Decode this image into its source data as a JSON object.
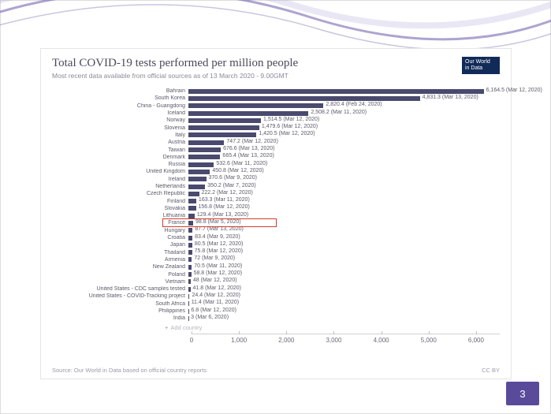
{
  "page_number": "3",
  "decorative_swoosh_color": "#6a5aaa",
  "chart": {
    "type": "bar",
    "title": "Total COVID-19 tests performed per million people",
    "subtitle": "Most recent data available from official sources as of 13 March 2020 - 9.00GMT",
    "badge_line1": "Our World",
    "badge_line2": "in Data",
    "badge_bg": "#112a58",
    "bar_color": "#4a4a6e",
    "highlight_color": "#d43b2a",
    "text_color": "#5a5a6a",
    "background_color": "#ffffff",
    "xlim": [
      0,
      6500
    ],
    "xticks": [
      0,
      1000,
      2000,
      3000,
      4000,
      5000,
      6000
    ],
    "xtick_labels": [
      "0",
      "1,000",
      "2,000",
      "3,000",
      "4,000",
      "5,000",
      "6,000"
    ],
    "add_country_label": "Add country",
    "source_text": "Source: Our World in Data based on official country reports",
    "license_text": "CC BY",
    "highlighted_row_index": 18,
    "rows": [
      {
        "label": "Bahrain",
        "value": 6164.5,
        "value_label": "6,164.5 (Mar 12, 2020)"
      },
      {
        "label": "South Korea",
        "value": 4831.3,
        "value_label": "4,831.3 (Mar 13, 2020)"
      },
      {
        "label": "China - Guangdong",
        "value": 2820.4,
        "value_label": "2,820.4 (Feb 24, 2020)"
      },
      {
        "label": "Iceland",
        "value": 2508.2,
        "value_label": "2,508.2 (Mar 11, 2020)"
      },
      {
        "label": "Norway",
        "value": 1514.5,
        "value_label": "1,514.5 (Mar 12, 2020)"
      },
      {
        "label": "Slovenia",
        "value": 1479.6,
        "value_label": "1,479.6 (Mar 12, 2020)"
      },
      {
        "label": "Italy",
        "value": 1420.5,
        "value_label": "1,420.5 (Mar 12, 2020)"
      },
      {
        "label": "Austria",
        "value": 747.2,
        "value_label": "747.2 (Mar 12, 2020)"
      },
      {
        "label": "Taiwan",
        "value": 676.6,
        "value_label": "676.6 (Mar 13, 2020)"
      },
      {
        "label": "Denmark",
        "value": 665.4,
        "value_label": "665.4 (Mar 13, 2020)"
      },
      {
        "label": "Russia",
        "value": 532.6,
        "value_label": "532.6 (Mar 11, 2020)"
      },
      {
        "label": "United Kingdom",
        "value": 450.8,
        "value_label": "450.8 (Mar 12, 2020)"
      },
      {
        "label": "Ireland",
        "value": 370.6,
        "value_label": "370.6 (Mar 9, 2020)"
      },
      {
        "label": "Netherlands",
        "value": 350.2,
        "value_label": "350.2 (Mar 7, 2020)"
      },
      {
        "label": "Czech Republic",
        "value": 222.2,
        "value_label": "222.2 (Mar 12, 2020)"
      },
      {
        "label": "Finland",
        "value": 163.3,
        "value_label": "163.3 (Mar 11, 2020)"
      },
      {
        "label": "Slovakia",
        "value": 156.8,
        "value_label": "156.8 (Mar 12, 2020)"
      },
      {
        "label": "Lithuania",
        "value": 129.4,
        "value_label": "129.4 (Mar 13, 2020)"
      },
      {
        "label": "France",
        "value": 98.8,
        "value_label": "98.8 (Mar 5, 2020)"
      },
      {
        "label": "Hungary",
        "value": 87.7,
        "value_label": "87.7 (Mar 13, 2020)"
      },
      {
        "label": "Croatia",
        "value": 83.4,
        "value_label": "83.4 (Mar 9, 2020)"
      },
      {
        "label": "Japan",
        "value": 80.5,
        "value_label": "80.5 (Mar 12, 2020)"
      },
      {
        "label": "Thailand",
        "value": 75.8,
        "value_label": "75.8 (Mar 12, 2020)"
      },
      {
        "label": "Armenia",
        "value": 72,
        "value_label": "72 (Mar 9, 2020)"
      },
      {
        "label": "New Zealand",
        "value": 70.5,
        "value_label": "70.5 (Mar 11, 2020)"
      },
      {
        "label": "Poland",
        "value": 58.8,
        "value_label": "58.8 (Mar 12, 2020)"
      },
      {
        "label": "Vietnam",
        "value": 48,
        "value_label": "48 (Mar 12, 2020)"
      },
      {
        "label": "United States - CDC samples tested",
        "value": 41.8,
        "value_label": "41.8 (Mar 12, 2020)"
      },
      {
        "label": "United States - COVID-Tracking project",
        "value": 24.4,
        "value_label": "24.4 (Mar 12, 2020)"
      },
      {
        "label": "South Africa",
        "value": 11.4,
        "value_label": "11.4 (Mar 11, 2020)"
      },
      {
        "label": "Philippines",
        "value": 6.8,
        "value_label": "6.8 (Mar 12, 2020)"
      },
      {
        "label": "India",
        "value": 3,
        "value_label": "3 (Mar 6, 2020)"
      }
    ]
  }
}
